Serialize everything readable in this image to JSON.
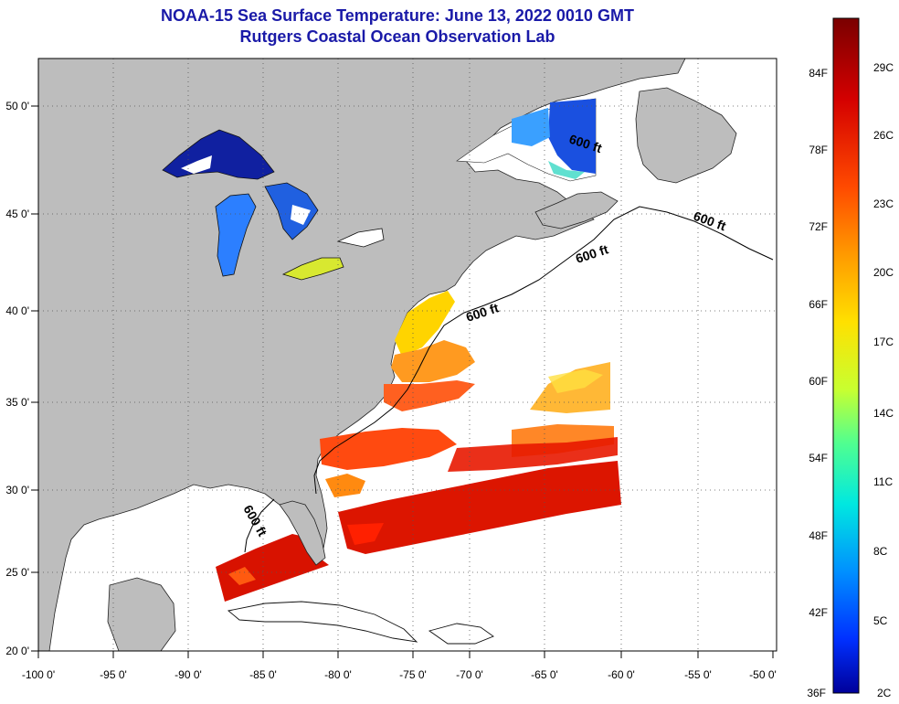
{
  "header": {
    "title": "NOAA-15 Sea Surface Temperature:  June 13, 2022 0010 GMT",
    "subtitle": "Rutgers Coastal Ocean Observation Lab"
  },
  "map": {
    "lon_ticks": [
      "-100 0'",
      "-95 0'",
      "-90 0'",
      "-85 0'",
      "-80 0'",
      "-75 0'",
      "-70 0'",
      "-65 0'",
      "-60 0'",
      "-55 0'",
      "-50 0'"
    ],
    "lat_ticks": [
      "50 0'",
      "45 0'",
      "40 0'",
      "35 0'",
      "30 0'",
      "25 0'",
      "20 0'"
    ],
    "contour_label": "600 ft",
    "land_color": "#bdbdbd",
    "cloud_color": "#ffffff"
  },
  "colorbar": {
    "fahrenheit_labels": [
      "84F",
      "78F",
      "72F",
      "66F",
      "60F",
      "54F",
      "48F",
      "42F",
      "36F"
    ],
    "celsius_labels": [
      "29C",
      "26C",
      "23C",
      "20C",
      "17C",
      "14C",
      "11C",
      "8C",
      "5C",
      "2C"
    ],
    "colors": [
      "#7a0000",
      "#d40000",
      "#ff4a00",
      "#ff9a00",
      "#ffe000",
      "#c8ff30",
      "#50ff90",
      "#00e8e0",
      "#0090ff",
      "#0030ff",
      "#00009a"
    ]
  }
}
